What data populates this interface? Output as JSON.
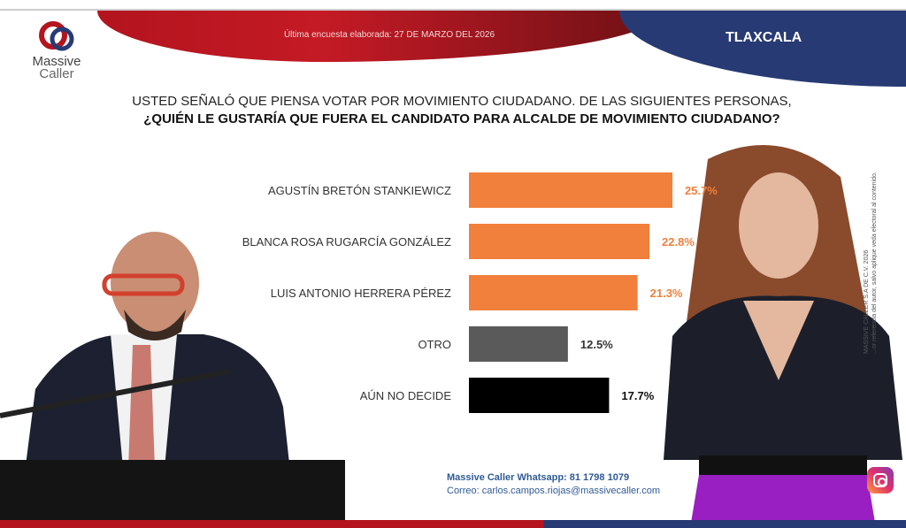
{
  "header": {
    "date_text": "Última encuesta elaborada: 27 DE MARZO DEL 2026",
    "state": "TLAXCALA",
    "logo_line1": "Massive",
    "logo_line2": "Caller"
  },
  "question": {
    "line1": "USTED SEÑALÓ QUE PIENSA VOTAR POR MOVIMIENTO CIUDADANO. DE LAS SIGUIENTES PERSONAS,",
    "line2": "¿QUIÉN LE GUSTARÍA QUE FUERA EL CANDIDATO PARA ALCALDE DE MOVIMIENTO CIUDADANO?"
  },
  "side_note": {
    "line1": "MASSIVE CALLER S.A DE C.V. 2026",
    "line2": "...or referencia del autor, salvo aplique veda electoral al contenido."
  },
  "footer": {
    "whatsapp": "Massive Caller Whatsapp: 81 1798 1079",
    "email": "Correo: carlos.campos.riojas@massivecaller.com"
  },
  "colors": {
    "red": "#b3141e",
    "blue": "#273a73",
    "orange": "#f0803c",
    "gray": "#5a5a5a",
    "black": "#000000"
  },
  "chart_data": {
    "type": "bar",
    "orientation": "horizontal",
    "title": "¿QUIÉN LE GUSTARÍA QUE FUERA EL CANDIDATO PARA ALCALDE DE MOVIMIENTO CIUDADANO?",
    "categories": [
      "AGUSTÍN BRETÓN STANKIEWICZ",
      "BLANCA ROSA RUGARCÍA GONZÁLEZ",
      "LUIS ANTONIO HERRERA PÉREZ",
      "OTRO",
      "AÚN NO DECIDE"
    ],
    "values": [
      25.7,
      22.8,
      21.3,
      12.5,
      17.7
    ],
    "labels": [
      "25.7%",
      "22.8%",
      "21.3%",
      "12.5%",
      "17.7%"
    ],
    "bar_colors": [
      "#f0803c",
      "#f0803c",
      "#f0803c",
      "#5a5a5a",
      "#000000"
    ],
    "label_colors": [
      "#f0803c",
      "#f0803c",
      "#f0803c",
      "#333333",
      "#111111"
    ],
    "unit": "%",
    "grid": false
  }
}
